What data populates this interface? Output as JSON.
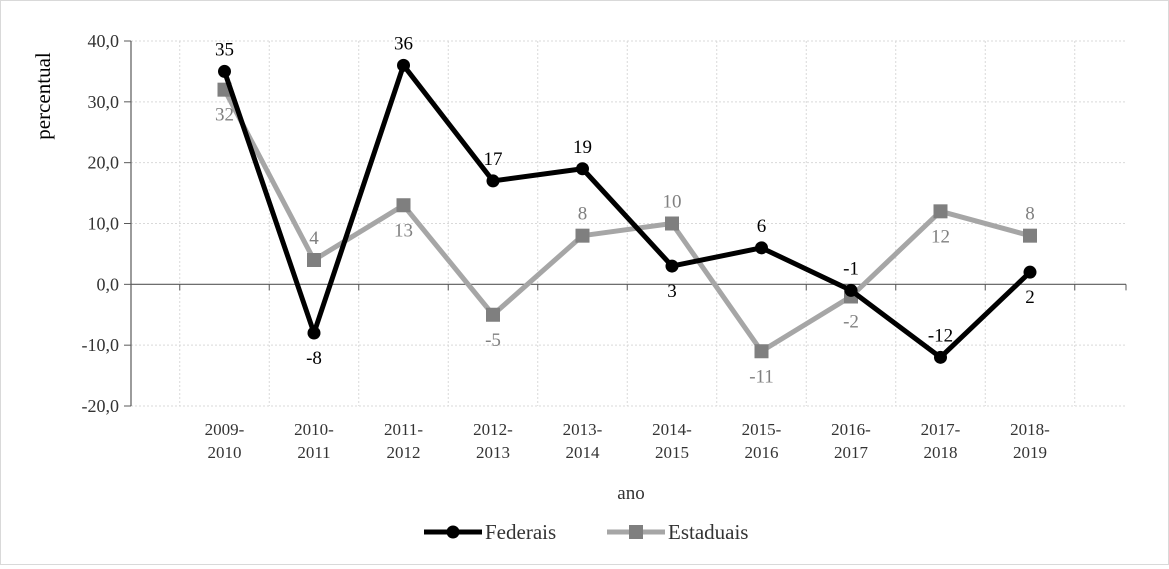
{
  "chart_data": {
    "type": "line",
    "categories": [
      [
        "2009-",
        "2010"
      ],
      [
        "2010-",
        "2011"
      ],
      [
        "2011-",
        "2012"
      ],
      [
        "2012-",
        "2013"
      ],
      [
        "2013-",
        "2014"
      ],
      [
        "2014-",
        "2015"
      ],
      [
        "2015-",
        "2016"
      ],
      [
        "2016-",
        "2017"
      ],
      [
        "2017-",
        "2018"
      ],
      [
        "2018-",
        "2019"
      ]
    ],
    "series": [
      {
        "name": "Federais",
        "values": [
          35,
          -8,
          36,
          17,
          19,
          3,
          6,
          -1,
          -12,
          2
        ],
        "labels": [
          "35",
          "-8",
          "36",
          "17",
          "19",
          "3",
          "6",
          "-1",
          "-12",
          "2"
        ],
        "label_positions": [
          "above",
          "below",
          "above",
          "above",
          "above",
          "below",
          "above",
          "above",
          "above",
          "below"
        ],
        "color": "#000000",
        "marker": "circle"
      },
      {
        "name": "Estaduais",
        "values": [
          32,
          4,
          13,
          -5,
          8,
          10,
          -11,
          -2,
          12,
          8
        ],
        "labels": [
          "32",
          "4",
          "13",
          "-5",
          "8",
          "10",
          "-11",
          "-2",
          "12",
          "8"
        ],
        "label_positions": [
          "below",
          "above",
          "below",
          "below",
          "above",
          "above",
          "below",
          "below",
          "below",
          "above"
        ],
        "color": "#a6a6a6",
        "marker_color": "#7f7f7f",
        "marker": "square"
      }
    ],
    "ylim": [
      -20,
      40
    ],
    "yticks": [
      -20,
      -10,
      0,
      10,
      20,
      30,
      40
    ],
    "ytick_labels": [
      "-20,0",
      "-10,0",
      "0,0",
      "10,0",
      "20,0",
      "30,0",
      "40,0"
    ],
    "xlabel": "ano",
    "ylabel": "percentual",
    "grid": true,
    "legend_position": "bottom"
  }
}
